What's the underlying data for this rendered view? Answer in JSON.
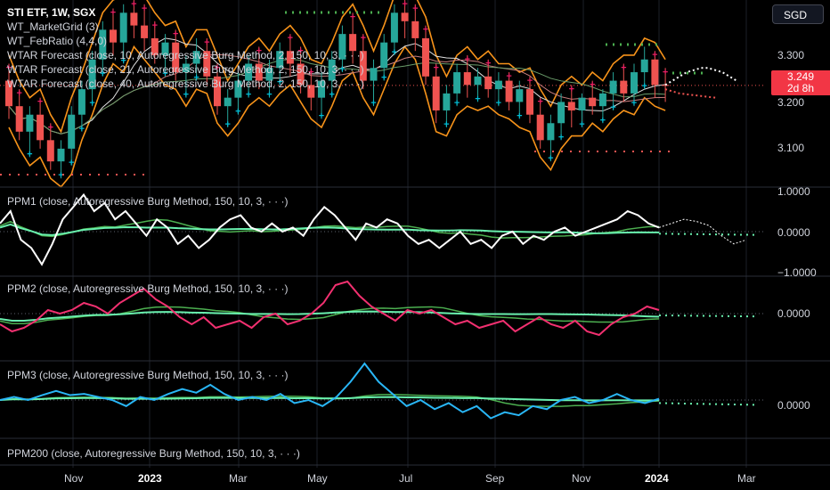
{
  "header": {
    "symbol_line": "STI ETF, 1W, SGX",
    "indicators": [
      "WT_MarketGrid (3)",
      "WT_FebRatio (4,4,0)",
      "WTAR Forecast (close, 10, Autoregressive Burg Method, 2, 150, 10, 3, · · ·)",
      "WTAR Forecast (close, 21, Autoregressive Burg Method, 2, 150, 10, 3, · · ·)",
      "WTAR Forecast (close, 40, Autoregressive Burg Method, 2, 150, 10, 3, · · ·)"
    ]
  },
  "currency": "SGD",
  "price_tag": {
    "price": "3.249",
    "countdown": "2d 8h"
  },
  "colors": {
    "bull": "#26a69a",
    "bear": "#ef5350",
    "envelope": "#f7931a",
    "cross_cyan": "#00bcd4",
    "cross_magenta": "#e91e63",
    "ppm1": "#ffffff",
    "ppm2": "#f23070",
    "ppm3": "#29b6f6",
    "green_slow": "#4caf50",
    "green_fast": "#69f0ae"
  },
  "panes": {
    "ppm1": "PPM1 (close, Autoregressive Burg Method, 150, 10, 3, · · ·)",
    "ppm2": "PPM2 (close, Autoregressive Burg Method, 150, 10, 3, · · ·)",
    "ppm3": "PPM3 (close, Autoregressive Burg Method, 150, 10, 3, · · ·)",
    "ppm200": "PPM200 (close, Autoregressive Burg Method, 150, 10, 3, · · ·)"
  },
  "y_axis": {
    "main": [
      "3.300",
      "3.200",
      "3.100"
    ],
    "ppm1": [
      "1.0000",
      "0.0000",
      "−1.0000"
    ],
    "ppm2": [
      "0.0000"
    ],
    "ppm3": [
      "0.0000"
    ]
  },
  "x_axis": [
    {
      "label": "Nov",
      "bold": false
    },
    {
      "label": "2023",
      "bold": true
    },
    {
      "label": "Mar",
      "bold": false
    },
    {
      "label": "May",
      "bold": false
    },
    {
      "label": "Jul",
      "bold": false
    },
    {
      "label": "Sep",
      "bold": false
    },
    {
      "label": "Nov",
      "bold": false
    },
    {
      "label": "2024",
      "bold": true
    },
    {
      "label": "Mar",
      "bold": false
    }
  ],
  "chart_data": {
    "type": "candlestick",
    "ylim": [
      3.02,
      3.45
    ],
    "candles": [
      [
        3.26,
        3.3,
        3.17,
        3.2
      ],
      [
        3.2,
        3.24,
        3.12,
        3.14
      ],
      [
        3.14,
        3.2,
        3.08,
        3.18
      ],
      [
        3.18,
        3.22,
        3.1,
        3.12
      ],
      [
        3.12,
        3.16,
        3.05,
        3.07
      ],
      [
        3.07,
        3.12,
        3.03,
        3.1
      ],
      [
        3.1,
        3.2,
        3.06,
        3.18
      ],
      [
        3.18,
        3.26,
        3.14,
        3.24
      ],
      [
        3.24,
        3.33,
        3.2,
        3.31
      ],
      [
        3.31,
        3.4,
        3.27,
        3.38
      ],
      [
        3.38,
        3.43,
        3.32,
        3.35
      ],
      [
        3.35,
        3.44,
        3.3,
        3.42
      ],
      [
        3.42,
        3.45,
        3.36,
        3.39
      ],
      [
        3.39,
        3.44,
        3.33,
        3.36
      ],
      [
        3.36,
        3.4,
        3.3,
        3.32
      ],
      [
        3.32,
        3.37,
        3.27,
        3.35
      ],
      [
        3.35,
        3.38,
        3.26,
        3.28
      ],
      [
        3.28,
        3.32,
        3.22,
        3.3
      ],
      [
        3.3,
        3.36,
        3.26,
        3.33
      ],
      [
        3.33,
        3.36,
        3.25,
        3.27
      ],
      [
        3.27,
        3.3,
        3.18,
        3.2
      ],
      [
        3.2,
        3.24,
        3.15,
        3.22
      ],
      [
        3.22,
        3.28,
        3.18,
        3.26
      ],
      [
        3.26,
        3.32,
        3.22,
        3.3
      ],
      [
        3.3,
        3.34,
        3.24,
        3.26
      ],
      [
        3.26,
        3.31,
        3.22,
        3.29
      ],
      [
        3.29,
        3.35,
        3.25,
        3.33
      ],
      [
        3.33,
        3.37,
        3.27,
        3.3
      ],
      [
        3.3,
        3.34,
        3.23,
        3.25
      ],
      [
        3.25,
        3.29,
        3.19,
        3.22
      ],
      [
        3.22,
        3.28,
        3.17,
        3.26
      ],
      [
        3.26,
        3.33,
        3.22,
        3.31
      ],
      [
        3.31,
        3.39,
        3.28,
        3.37
      ],
      [
        3.37,
        3.42,
        3.3,
        3.33
      ],
      [
        3.33,
        3.37,
        3.24,
        3.26
      ],
      [
        3.26,
        3.31,
        3.2,
        3.29
      ],
      [
        3.29,
        3.37,
        3.26,
        3.35
      ],
      [
        3.35,
        3.44,
        3.32,
        3.42
      ],
      [
        3.42,
        3.45,
        3.36,
        3.4
      ],
      [
        3.4,
        3.44,
        3.33,
        3.36
      ],
      [
        3.36,
        3.39,
        3.25,
        3.27
      ],
      [
        3.27,
        3.3,
        3.16,
        3.19
      ],
      [
        3.19,
        3.25,
        3.15,
        3.23
      ],
      [
        3.23,
        3.3,
        3.2,
        3.28
      ],
      [
        3.28,
        3.32,
        3.22,
        3.25
      ],
      [
        3.25,
        3.29,
        3.21,
        3.27
      ],
      [
        3.27,
        3.31,
        3.22,
        3.24
      ],
      [
        3.24,
        3.28,
        3.2,
        3.26
      ],
      [
        3.26,
        3.28,
        3.19,
        3.21
      ],
      [
        3.21,
        3.26,
        3.17,
        3.24
      ],
      [
        3.24,
        3.27,
        3.16,
        3.18
      ],
      [
        3.18,
        3.22,
        3.1,
        3.12
      ],
      [
        3.12,
        3.18,
        3.07,
        3.16
      ],
      [
        3.16,
        3.23,
        3.12,
        3.21
      ],
      [
        3.21,
        3.25,
        3.15,
        3.19
      ],
      [
        3.19,
        3.23,
        3.15,
        3.22
      ],
      [
        3.22,
        3.26,
        3.18,
        3.2
      ],
      [
        3.2,
        3.24,
        3.16,
        3.23
      ],
      [
        3.23,
        3.28,
        3.19,
        3.26
      ],
      [
        3.26,
        3.3,
        3.21,
        3.23
      ],
      [
        3.23,
        3.3,
        3.2,
        3.28
      ],
      [
        3.28,
        3.34,
        3.24,
        3.31
      ],
      [
        3.31,
        3.33,
        3.22,
        3.25
      ],
      [
        3.25,
        3.29,
        3.21,
        3.249
      ]
    ],
    "forecast": [
      3.25,
      3.26,
      3.27,
      3.28,
      3.285,
      3.29,
      3.29,
      3.285,
      3.28,
      3.27,
      3.26
    ],
    "forecast_red": [
      3.24,
      3.235,
      3.23,
      3.228,
      3.226,
      3.224,
      3.222,
      3.22
    ],
    "ppm1": [
      0.2,
      0.5,
      -0.2,
      -0.4,
      -0.8,
      -0.3,
      0.3,
      0.6,
      0.9,
      0.5,
      0.7,
      0.3,
      0.5,
      0.2,
      -0.1,
      0.3,
      0.1,
      -0.3,
      -0.1,
      -0.4,
      -0.2,
      0.1,
      0.3,
      0.4,
      0.1,
      0.0,
      0.2,
      0.0,
      0.1,
      -0.1,
      0.3,
      0.6,
      0.4,
      0.1,
      -0.2,
      0.2,
      0.1,
      0.3,
      0.2,
      -0.1,
      -0.3,
      -0.2,
      -0.4,
      -0.2,
      0.0,
      -0.3,
      -0.2,
      -0.4,
      -0.1,
      0.0,
      -0.3,
      -0.1,
      -0.2,
      0.0,
      0.1,
      -0.1,
      0.0,
      0.1,
      0.2,
      0.3,
      0.5,
      0.4,
      0.2,
      0.1
    ],
    "ppm1_forecast": [
      0.1,
      0.2,
      0.3,
      0.25,
      0.15,
      -0.1,
      -0.3,
      -0.2
    ],
    "ppm2": [
      -0.3,
      -0.5,
      -0.4,
      -0.2,
      0.1,
      0.0,
      0.1,
      0.3,
      0.2,
      0.0,
      0.3,
      0.5,
      0.7,
      0.4,
      0.2,
      -0.1,
      -0.3,
      -0.1,
      -0.4,
      -0.3,
      -0.2,
      -0.4,
      -0.1,
      0.0,
      -0.3,
      -0.2,
      0.0,
      0.3,
      0.8,
      0.9,
      0.5,
      0.2,
      0.0,
      -0.2,
      0.1,
      0.0,
      0.1,
      -0.1,
      -0.3,
      -0.2,
      -0.4,
      -0.3,
      -0.2,
      -0.5,
      -0.3,
      -0.1,
      -0.3,
      -0.4,
      -0.2,
      -0.5,
      -0.6,
      -0.3,
      -0.1,
      0.0,
      0.2,
      0.1
    ],
    "ppm3": [
      0.0,
      0.05,
      0.0,
      0.08,
      0.15,
      0.08,
      0.1,
      0.05,
      0.0,
      -0.1,
      0.05,
      0.0,
      0.1,
      0.18,
      0.12,
      0.25,
      0.1,
      0.0,
      0.05,
      0.0,
      0.1,
      -0.05,
      0.0,
      -0.1,
      0.05,
      0.3,
      0.6,
      0.3,
      0.1,
      -0.1,
      0.0,
      -0.15,
      -0.05,
      -0.2,
      -0.1,
      -0.3,
      -0.2,
      -0.25,
      -0.1,
      -0.15,
      0.0,
      0.05,
      -0.05,
      0.0,
      0.1,
      0.0,
      -0.05,
      0.02
    ]
  }
}
